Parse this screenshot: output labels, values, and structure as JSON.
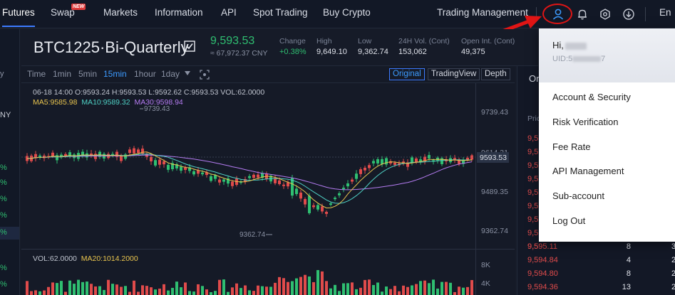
{
  "nav": {
    "items": [
      "Futures",
      "Swap",
      "Markets",
      "Information",
      "API",
      "Spot Trading",
      "Buy Crypto"
    ],
    "new_badge": "NEW",
    "trading_management": "Trading Management",
    "language": "En"
  },
  "left_column": {
    "labels": [
      "y",
      "NY",
      "%",
      "%",
      "%",
      "%",
      "%",
      "%",
      "%"
    ]
  },
  "instrument": {
    "name": "BTC1225·Bi-Quarterly",
    "last_price": "9,593.53",
    "cny_price": "≈ 67,972.37 CNY",
    "stats": [
      {
        "label": "Change",
        "value": "+0.38%"
      },
      {
        "label": "High",
        "value": "9,649.10"
      },
      {
        "label": "Low",
        "value": "9,362.74"
      },
      {
        "label": "24H Vol. (Cont)",
        "value": "153,062"
      },
      {
        "label": "Open Int. (Cont)",
        "value": "49,375"
      }
    ]
  },
  "chart_toolbar": {
    "timeframes": [
      "Time",
      "1min",
      "5min",
      "15min",
      "1hour",
      "1day"
    ],
    "active_timeframe": "15min",
    "views": [
      "Original",
      "TradingView",
      "Depth"
    ],
    "active_view": "Original"
  },
  "chart_data": {
    "type": "candlestick",
    "ohlc_readout": "06-18 14:00   O:9593.24 H:9593.53 L:9592.62 C:9593.53 VOL:62.0000",
    "ma": {
      "ma5": "MA5:9585.98",
      "ma10": "MA10:9589.32",
      "ma30": "MA30:9598.94"
    },
    "y_ticks": [
      "9739.43",
      "9614.31",
      "9489.35",
      "9362.74"
    ],
    "current_price_tag": "9593.53",
    "high_marker": "9739.43",
    "low_marker": "9362.74",
    "y_range": [
      9362.74,
      9739.43
    ],
    "volume": {
      "label": "VOL:62.0000",
      "ma20": "MA20:1014.2000",
      "y_ticks": [
        "8K",
        "4K"
      ]
    }
  },
  "order_book": {
    "header": "Or",
    "column": "Pric",
    "partial_prices": [
      "9,5",
      "9,5",
      "9,5",
      "9,5",
      "9,5",
      "9,5",
      "9,5",
      "9,5",
      "9,5"
    ],
    "rows": [
      {
        "price": "9,595.11",
        "qty": "8",
        "sum": "3"
      },
      {
        "price": "9,594.84",
        "qty": "4",
        "sum": "2"
      },
      {
        "price": "9,594.80",
        "qty": "8",
        "sum": "2"
      },
      {
        "price": "9,594.36",
        "qty": "13",
        "sum": "2"
      }
    ]
  },
  "account_menu": {
    "greeting": "Hi,",
    "uid_prefix": "UID:5",
    "uid_suffix": "7",
    "items": [
      "Account & Security",
      "Risk Verification",
      "Fee Rate",
      "API Management",
      "Sub-account",
      "Log Out"
    ]
  }
}
